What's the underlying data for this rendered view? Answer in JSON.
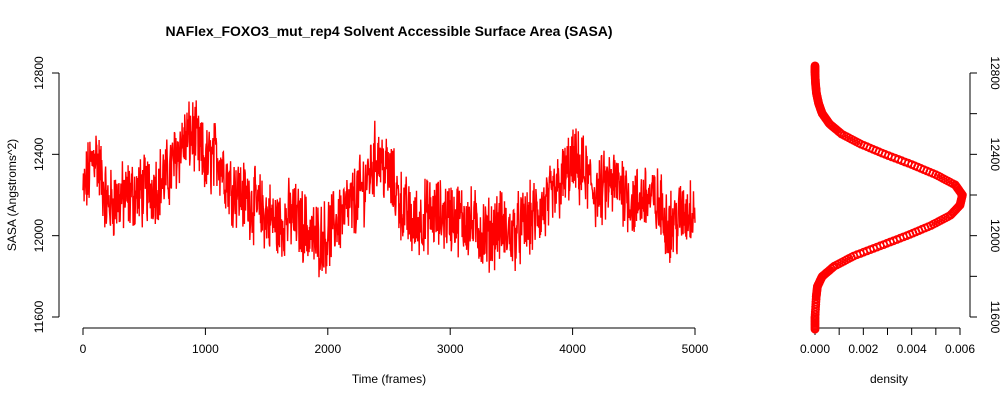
{
  "chart_data": [
    {
      "type": "line",
      "title": "NAFlex_FOXO3_mut_rep4 Solvent Accessible Surface Area (SASA)",
      "xlabel": "Time (frames)",
      "ylabel": "SASA (Angstroms^2)",
      "xlim": [
        0,
        5000
      ],
      "ylim": [
        11600,
        12800
      ],
      "xticks": [
        0,
        1000,
        2000,
        3000,
        4000,
        5000
      ],
      "yticks": [
        11600,
        12000,
        12400,
        12800
      ],
      "series_color": "#ff0000",
      "series": [
        {
          "x": [
            0,
            100,
            200,
            300,
            400,
            500,
            600,
            700,
            800,
            900,
            1000,
            1100,
            1200,
            1300,
            1400,
            1500,
            1600,
            1700,
            1800,
            1900,
            2000,
            2100,
            2200,
            2300,
            2400,
            2500,
            2600,
            2700,
            2800,
            2900,
            3000,
            3100,
            3200,
            3300,
            3400,
            3500,
            3600,
            3700,
            3800,
            3900,
            4000,
            4100,
            4200,
            4300,
            4400,
            4500,
            4600,
            4700,
            4800,
            4900,
            5000
          ],
          "values": [
            12200,
            12420,
            12150,
            12180,
            12200,
            12220,
            12250,
            12300,
            12450,
            12500,
            12350,
            12400,
            12250,
            12200,
            12150,
            12100,
            12050,
            12100,
            12050,
            11980,
            12000,
            12100,
            12150,
            12250,
            12400,
            12300,
            12150,
            12050,
            12100,
            12100,
            12100,
            12080,
            12050,
            12000,
            12050,
            12000,
            12050,
            12100,
            12150,
            12250,
            12350,
            12300,
            12200,
            12250,
            12250,
            12150,
            12200,
            12150,
            12050,
            12100,
            12150
          ]
        }
      ]
    },
    {
      "type": "line",
      "xlabel": "density",
      "xlim": [
        0,
        0.006
      ],
      "ylim": [
        11600,
        12800
      ],
      "xticks": [
        "0.000",
        "0.002",
        "0.004",
        "0.006"
      ],
      "yticks": [
        11600,
        12000,
        12400,
        12800
      ],
      "series_color": "#ff0000",
      "series": [
        {
          "y": [
            11540,
            11600,
            11700,
            11750,
            11800,
            11850,
            11900,
            11950,
            12000,
            12050,
            12100,
            12150,
            12200,
            12250,
            12300,
            12350,
            12400,
            12450,
            12500,
            12550,
            12600,
            12650,
            12700,
            12750,
            12800,
            12840
          ],
          "density": [
            0.0,
            0.0,
            5e-05,
            0.0001,
            0.0003,
            0.0008,
            0.0016,
            0.0027,
            0.0038,
            0.0048,
            0.0056,
            0.006,
            0.0061,
            0.0058,
            0.005,
            0.004,
            0.0029,
            0.0019,
            0.0011,
            0.0006,
            0.0003,
            0.00015,
            6e-05,
            2e-05,
            0.0,
            0.0
          ]
        }
      ]
    }
  ]
}
